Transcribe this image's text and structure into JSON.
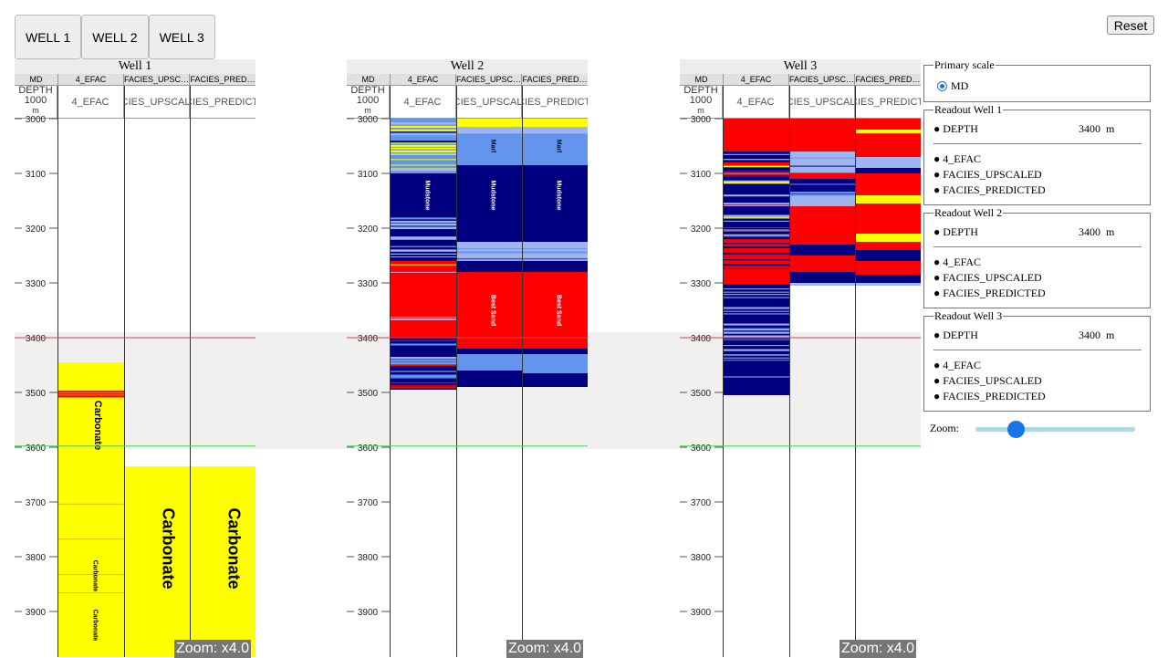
{
  "tabs": [
    "WELL 1",
    "WELL 2",
    "WELL 3"
  ],
  "reset_label": "Reset",
  "wells": [
    {
      "title": "Well 1",
      "zoom_label": "Zoom: x4.0"
    },
    {
      "title": "Well 2",
      "zoom_label": "Zoom: x4.0"
    },
    {
      "title": "Well 3",
      "zoom_label": "Zoom: x4.0"
    }
  ],
  "track_headers": {
    "md": "MD",
    "efac": "4_EFAC",
    "upscaled_short": "FACIES_UPSC…",
    "predicted_short": "FACIES_PRED…",
    "depth": "DEPTH",
    "depth_scale": "1000",
    "depth_unit": "m",
    "efac_label": "4_EFAC",
    "upscaled_label": "FACIES_UPSCALED",
    "predicted_label": "FACIES_PREDICTED"
  },
  "depth_ticks": [
    "3000",
    "3100",
    "3200",
    "3300",
    "3400",
    "3500",
    "3600",
    "3700",
    "3800",
    "3900"
  ],
  "facies_labels": {
    "carbonate": "Carbonate",
    "marl": "Marl",
    "mudstone": "Mudstone",
    "best_sand": "Best Sand"
  },
  "colors": {
    "carbonate": "#ffff00",
    "marl": "#6495ed",
    "mudstone": "#000080",
    "best_sand": "#ff0000",
    "light_marl": "#a0b4f0",
    "selection_band": "#e4e4e4",
    "readout_line": "#e04040",
    "green_line": "#50d050"
  },
  "primary_scale": {
    "legend": "Primary scale",
    "option": "MD"
  },
  "readouts": [
    {
      "legend": "Readout Well 1",
      "depth_label": "DEPTH",
      "depth_value": "3400",
      "depth_unit": "m",
      "items": [
        "4_EFAC",
        "FACIES_UPSCALED",
        "FACIES_PREDICTED"
      ]
    },
    {
      "legend": "Readout Well 2",
      "depth_label": "DEPTH",
      "depth_value": "3400",
      "depth_unit": "m",
      "items": [
        "4_EFAC",
        "FACIES_UPSCALED",
        "FACIES_PREDICTED"
      ]
    },
    {
      "legend": "Readout Well 3",
      "depth_label": "DEPTH",
      "depth_value": "3400",
      "depth_unit": "m",
      "items": [
        "4_EFAC",
        "FACIES_UPSCALED",
        "FACIES_PREDICTED"
      ]
    }
  ],
  "zoom": {
    "label": "Zoom:",
    "level": 0.25
  }
}
